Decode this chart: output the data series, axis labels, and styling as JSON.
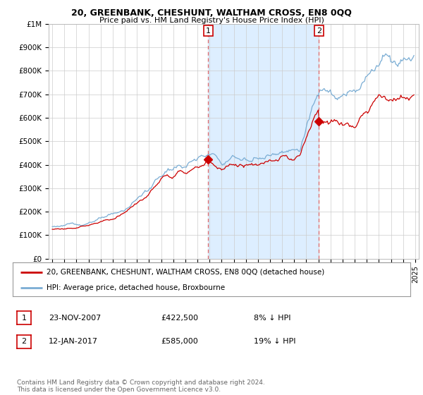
{
  "title": "20, GREENBANK, CHESHUNT, WALTHAM CROSS, EN8 0QQ",
  "subtitle": "Price paid vs. HM Land Registry's House Price Index (HPI)",
  "legend_line1": "20, GREENBANK, CHESHUNT, WALTHAM CROSS, EN8 0QQ (detached house)",
  "legend_line2": "HPI: Average price, detached house, Broxbourne",
  "annotation1_label": "1",
  "annotation1_date": "23-NOV-2007",
  "annotation1_price": "£422,500",
  "annotation1_hpi": "8% ↓ HPI",
  "annotation2_label": "2",
  "annotation2_date": "12-JAN-2017",
  "annotation2_price": "£585,000",
  "annotation2_hpi": "19% ↓ HPI",
  "footer": "Contains HM Land Registry data © Crown copyright and database right 2024.\nThis data is licensed under the Open Government Licence v3.0.",
  "sale_color": "#cc0000",
  "hpi_color": "#7aadd4",
  "hpi_fill_color": "#ddeeff",
  "vline_color": "#dd6666",
  "background_color": "#ffffff",
  "ylim": [
    0,
    1000000
  ],
  "yticks": [
    0,
    100000,
    200000,
    300000,
    400000,
    500000,
    600000,
    700000,
    800000,
    900000,
    1000000
  ],
  "ytick_labels": [
    "£0",
    "£100K",
    "£200K",
    "£300K",
    "£400K",
    "£500K",
    "£600K",
    "£700K",
    "£800K",
    "£900K",
    "£1M"
  ],
  "sale1_x": 2007.9,
  "sale1_y": 422500,
  "sale2_x": 2017.04,
  "sale2_y": 585000,
  "xlim_left": 1994.7,
  "xlim_right": 2025.3
}
